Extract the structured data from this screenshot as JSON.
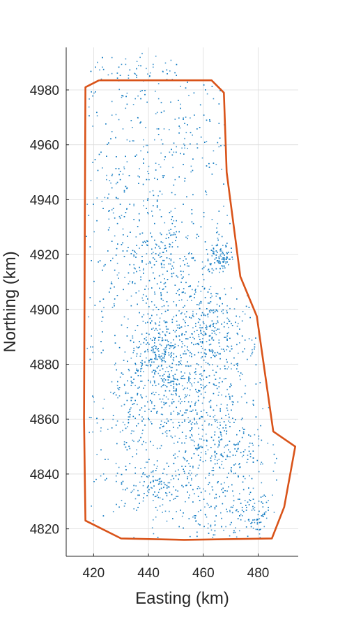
{
  "chart_data": {
    "type": "scatter",
    "title": "",
    "xlabel": "Easting (km)",
    "ylabel": "Northing (km)",
    "xlim": [
      410,
      494.6
    ],
    "ylim": [
      4810,
      4995.5
    ],
    "xticks": [
      420,
      440,
      460,
      480
    ],
    "yticks": [
      4820,
      4840,
      4860,
      4880,
      4900,
      4920,
      4940,
      4960,
      4980
    ],
    "grid": true,
    "colors": {
      "points": "#0072BD",
      "boundary": "#D95319",
      "grid": "#dcdcdc",
      "axis": "#262626"
    },
    "series": [
      {
        "type": "scatter-density",
        "description_clusters": [
          {
            "x": 446,
            "y": 4882,
            "sx": 6,
            "sy": 10,
            "w": 14
          },
          {
            "x": 460,
            "y": 4895,
            "sx": 5,
            "sy": 8,
            "w": 12
          },
          {
            "x": 452,
            "y": 4870,
            "sx": 8,
            "sy": 10,
            "w": 12
          },
          {
            "x": 445,
            "y": 4918,
            "sx": 6,
            "sy": 10,
            "w": 10
          },
          {
            "x": 466,
            "y": 4920,
            "sx": 3,
            "sy": 3,
            "w": 5
          },
          {
            "x": 470,
            "y": 4848,
            "sx": 6,
            "sy": 8,
            "w": 8
          },
          {
            "x": 444,
            "y": 4836,
            "sx": 5,
            "sy": 4,
            "w": 7
          },
          {
            "x": 456,
            "y": 4848,
            "sx": 7,
            "sy": 8,
            "w": 8
          },
          {
            "x": 438,
            "y": 4870,
            "sx": 6,
            "sy": 12,
            "w": 6
          },
          {
            "x": 478,
            "y": 4826,
            "sx": 4,
            "sy": 4,
            "w": 5
          },
          {
            "x": 440,
            "y": 4955,
            "sx": 12,
            "sy": 20,
            "w": 9
          },
          {
            "x": 430,
            "y": 4910,
            "sx": 8,
            "sy": 25,
            "w": 7
          },
          {
            "x": 432,
            "y": 4845,
            "sx": 6,
            "sy": 15,
            "w": 5
          },
          {
            "x": 445,
            "y": 4988,
            "sx": 15,
            "sy": 4,
            "w": 3
          },
          {
            "x": 470,
            "y": 4880,
            "sx": 5,
            "sy": 15,
            "w": 6
          },
          {
            "x": 463,
            "y": 4825,
            "sx": 8,
            "sy": 5,
            "w": 5
          }
        ]
      },
      {
        "type": "line",
        "x": [
          422,
          463,
          467.5,
          468.5,
          473.5,
          479.5,
          485.5,
          493.5,
          489.5,
          485,
          453,
          430,
          417,
          416.5,
          417,
          422
        ],
        "y": [
          4983.5,
          4983.5,
          4979,
          4950,
          4912,
          4897.5,
          4855.5,
          4850,
          4828,
          4816.5,
          4816,
          4816.5,
          4823,
          4860,
          4981,
          4983.5
        ]
      }
    ]
  }
}
